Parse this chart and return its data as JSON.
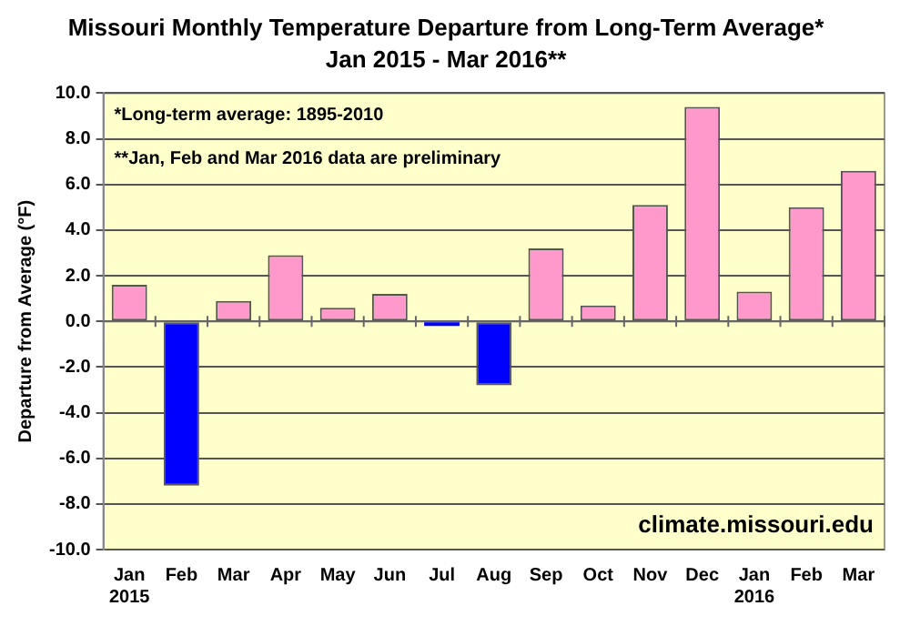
{
  "chart_data": {
    "type": "bar",
    "title": "Missouri Monthly Temperature Departure from Long-Term Average*",
    "subtitle": "Jan 2015 - Mar 2016**",
    "ylabel": "Departure from Average (°F)",
    "categories": [
      "Jan\n2015",
      "Feb",
      "Mar",
      "Apr",
      "May",
      "Jun",
      "Jul",
      "Aug",
      "Sep",
      "Oct",
      "Nov",
      "Dec",
      "Jan\n2016",
      "Feb",
      "Mar"
    ],
    "values": [
      1.6,
      -7.2,
      0.9,
      2.9,
      0.6,
      1.2,
      -0.2,
      -2.8,
      3.2,
      0.7,
      5.1,
      9.4,
      1.3,
      5.0,
      6.6
    ],
    "colors": [
      "#ff99cc",
      "#0000ff",
      "#ff99cc",
      "#ff99cc",
      "#ff99cc",
      "#ff99cc",
      "#0000ff",
      "#0000ff",
      "#ff99cc",
      "#ff99cc",
      "#ff99cc",
      "#ff99cc",
      "#ff99cc",
      "#ff99cc",
      "#ff99cc"
    ],
    "ylim": [
      -10,
      10
    ],
    "yticks": [
      {
        "value": -10,
        "label": "-10.0"
      },
      {
        "value": -8,
        "label": "-8.0"
      },
      {
        "value": -6,
        "label": "-6.0"
      },
      {
        "value": -4,
        "label": "-4.0"
      },
      {
        "value": -2,
        "label": "-2.0"
      },
      {
        "value": 0,
        "label": "0.0"
      },
      {
        "value": 2,
        "label": "2.0"
      },
      {
        "value": 4,
        "label": "4.0"
      },
      {
        "value": 6,
        "label": "6.0"
      },
      {
        "value": 8,
        "label": "8.0"
      },
      {
        "value": 10,
        "label": "10.0"
      }
    ],
    "grid": "y",
    "annotations": [
      "*Long-term average: 1895-2010",
      "**Jan, Feb and Mar 2016 data are preliminary",
      "climate.missouri.edu"
    ]
  }
}
